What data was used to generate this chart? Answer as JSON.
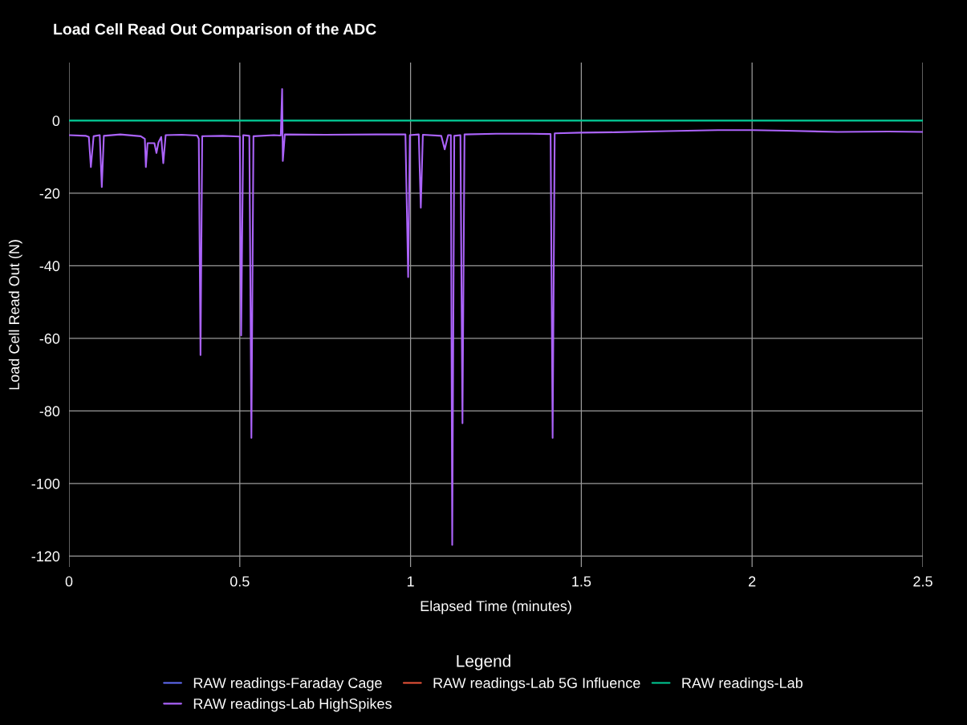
{
  "chart_data": {
    "type": "line",
    "title": "Load Cell Read Out Comparison of the ADC",
    "xlabel": "Elapsed Time (minutes)",
    "ylabel": "Load Cell Read Out (N)",
    "legend_title": "Legend",
    "legend": "bottom",
    "grid": true,
    "marker": "none",
    "line_style": "solid",
    "xlim": [
      0,
      2.5
    ],
    "xticks": [
      0,
      0.5,
      1,
      1.5,
      2,
      2.5
    ],
    "ylim": [
      -123,
      16
    ],
    "yticks": [
      -120,
      -100,
      -80,
      -60,
      -40,
      -20,
      0
    ],
    "series": [
      {
        "name": "RAW readings-Faraday Cage",
        "color": "#636efa",
        "values": [
          null,
          null
        ]
      },
      {
        "name": "RAW readings-Lab 5G Influence",
        "color": "#ef553b",
        "values": [
          null,
          null
        ]
      },
      {
        "name": "RAW readings-Lab",
        "color": "#00cc96",
        "x": [
          0,
          2.5
        ],
        "values": [
          0,
          0
        ]
      },
      {
        "name": "RAW readings-Lab HighSpikes",
        "color": "#ab63fa",
        "x": [
          0,
          0.05,
          0.058,
          0.064,
          0.072,
          0.09,
          0.096,
          0.102,
          0.15,
          0.21,
          0.222,
          0.225,
          0.23,
          0.25,
          0.256,
          0.262,
          0.27,
          0.276,
          0.283,
          0.33,
          0.375,
          0.38,
          0.385,
          0.39,
          0.45,
          0.5,
          0.504,
          0.51,
          0.528,
          0.534,
          0.54,
          0.6,
          0.62,
          0.624,
          0.626,
          0.632,
          0.75,
          0.9,
          0.985,
          0.993,
          0.998,
          1.024,
          1.03,
          1.036,
          1.09,
          1.1,
          1.11,
          1.118,
          1.122,
          1.128,
          1.146,
          1.152,
          1.158,
          1.25,
          1.35,
          1.41,
          1.416,
          1.422,
          1.5,
          1.6,
          1.75,
          1.9,
          2.0,
          2.1,
          2.25,
          2.4,
          2.5
        ],
        "values": [
          -4.0,
          -4.2,
          -4.5,
          -12.8,
          -4.3,
          -4.0,
          -18.3,
          -4.2,
          -3.8,
          -4.3,
          -5,
          -12.8,
          -6.2,
          -6.2,
          -8.9,
          -6,
          -4.5,
          -11.7,
          -4.0,
          -3.9,
          -4.1,
          -5,
          -64.6,
          -4.3,
          -4.2,
          -4.4,
          -59.2,
          -4.0,
          -4.2,
          -87.4,
          -4.3,
          -4.0,
          -4.1,
          8.7,
          -11.1,
          -3.8,
          -3.9,
          -3.8,
          -3.8,
          -43.1,
          -4.0,
          -3.8,
          -24.0,
          -3.9,
          -4.2,
          -7.9,
          -4,
          -4,
          -116.9,
          -4.2,
          -4,
          -83.4,
          -3.8,
          -3.6,
          -3.6,
          -3.7,
          -87.4,
          -3.5,
          -3.3,
          -3.2,
          -2.9,
          -2.6,
          -2.6,
          -2.8,
          -3.1,
          -3.0,
          -3.1
        ]
      }
    ]
  }
}
